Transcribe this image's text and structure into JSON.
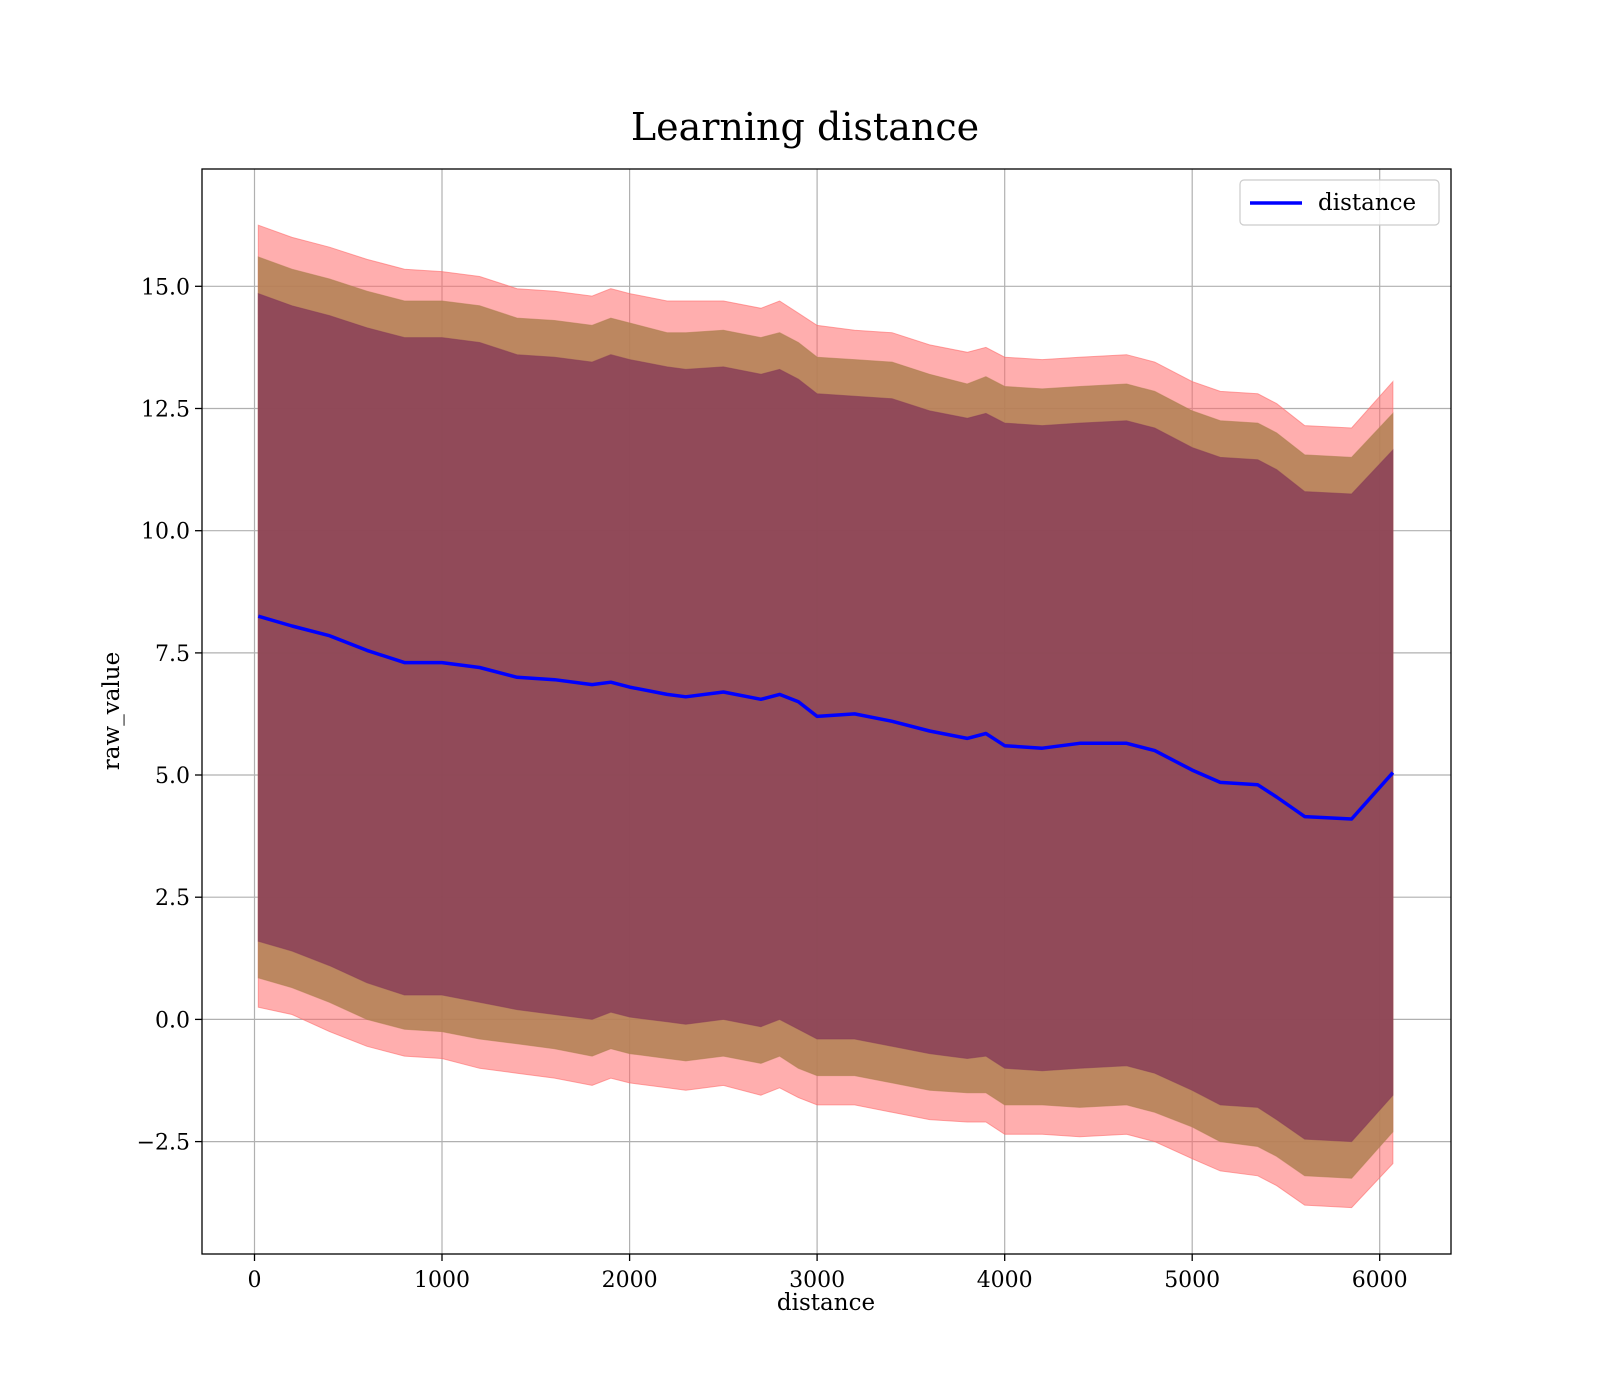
{
  "chart_data": {
    "type": "area",
    "title": "Learning distance",
    "xlabel": "distance",
    "ylabel": "raw_value",
    "xlim": [
      -280,
      6380
    ],
    "ylim": [
      -4.8,
      17.4
    ],
    "xticks": [
      0,
      1000,
      2000,
      3000,
      4000,
      5000,
      6000
    ],
    "xtick_labels": [
      "0",
      "1000",
      "2000",
      "3000",
      "4000",
      "5000",
      "6000"
    ],
    "yticks": [
      -2.5,
      0.0,
      2.5,
      5.0,
      7.5,
      10.0,
      12.5,
      15.0
    ],
    "ytick_labels": [
      "−2.5",
      "0.0",
      "2.5",
      "5.0",
      "7.5",
      "10.0",
      "12.5",
      "15.0"
    ],
    "grid": true,
    "legend": {
      "position": "top-right",
      "entries": [
        "distance"
      ]
    },
    "colors": {
      "line": "#0000ff",
      "band_outer": "#ff6b6b",
      "band_middle": "#b08052",
      "band_inner": "#8a4058"
    },
    "x": [
      20,
      200,
      400,
      600,
      800,
      1000,
      1200,
      1400,
      1600,
      1800,
      1900,
      2000,
      2200,
      2300,
      2500,
      2700,
      2800,
      2900,
      3000,
      3200,
      3400,
      3600,
      3800,
      3900,
      4000,
      4200,
      4400,
      4650,
      4800,
      5000,
      5150,
      5350,
      5450,
      5600,
      5850,
      6070
    ],
    "series": [
      {
        "name": "distance",
        "values": [
          8.25,
          8.05,
          7.85,
          7.55,
          7.3,
          7.3,
          7.2,
          7.0,
          6.95,
          6.85,
          6.9,
          6.8,
          6.65,
          6.6,
          6.7,
          6.55,
          6.65,
          6.5,
          6.2,
          6.25,
          6.1,
          5.9,
          5.75,
          5.85,
          5.6,
          5.55,
          5.65,
          5.65,
          5.5,
          5.1,
          4.85,
          4.8,
          4.55,
          4.15,
          4.1,
          5.05
        ]
      }
    ],
    "bands": [
      {
        "lower": [
          0.25,
          0.1,
          -0.25,
          -0.55,
          -0.75,
          -0.8,
          -1.0,
          -1.1,
          -1.2,
          -1.35,
          -1.2,
          -1.3,
          -1.4,
          -1.45,
          -1.35,
          -1.55,
          -1.4,
          -1.6,
          -1.75,
          -1.75,
          -1.9,
          -2.05,
          -2.1,
          -2.1,
          -2.35,
          -2.35,
          -2.4,
          -2.35,
          -2.5,
          -2.85,
          -3.1,
          -3.2,
          -3.4,
          -3.8,
          -3.85,
          -2.95
        ],
        "upper": [
          16.25,
          16.0,
          15.8,
          15.55,
          15.35,
          15.3,
          15.2,
          14.95,
          14.9,
          14.8,
          14.95,
          14.85,
          14.7,
          14.7,
          14.7,
          14.55,
          14.7,
          14.45,
          14.2,
          14.1,
          14.05,
          13.8,
          13.65,
          13.75,
          13.55,
          13.5,
          13.55,
          13.6,
          13.45,
          13.05,
          12.85,
          12.8,
          12.6,
          12.15,
          12.1,
          13.05
        ]
      },
      {
        "lower": [
          0.85,
          0.65,
          0.35,
          0.0,
          -0.2,
          -0.25,
          -0.4,
          -0.5,
          -0.6,
          -0.75,
          -0.6,
          -0.7,
          -0.8,
          -0.85,
          -0.75,
          -0.9,
          -0.75,
          -1.0,
          -1.15,
          -1.15,
          -1.3,
          -1.45,
          -1.5,
          -1.5,
          -1.75,
          -1.75,
          -1.8,
          -1.75,
          -1.9,
          -2.2,
          -2.5,
          -2.6,
          -2.8,
          -3.2,
          -3.25,
          -2.3
        ],
        "upper": [
          15.6,
          15.35,
          15.15,
          14.9,
          14.7,
          14.7,
          14.6,
          14.35,
          14.3,
          14.2,
          14.35,
          14.25,
          14.05,
          14.05,
          14.1,
          13.95,
          14.05,
          13.85,
          13.55,
          13.5,
          13.45,
          13.2,
          13.0,
          13.15,
          12.95,
          12.9,
          12.95,
          13.0,
          12.85,
          12.45,
          12.25,
          12.2,
          12.0,
          11.55,
          11.5,
          12.4
        ]
      },
      {
        "lower": [
          1.6,
          1.4,
          1.1,
          0.75,
          0.5,
          0.5,
          0.35,
          0.2,
          0.1,
          0.0,
          0.15,
          0.05,
          -0.05,
          -0.1,
          0.0,
          -0.15,
          0.0,
          -0.2,
          -0.4,
          -0.4,
          -0.55,
          -0.7,
          -0.8,
          -0.75,
          -1.0,
          -1.05,
          -1.0,
          -0.95,
          -1.1,
          -1.45,
          -1.75,
          -1.8,
          -2.05,
          -2.45,
          -2.5,
          -1.55
        ],
        "upper": [
          14.85,
          14.6,
          14.4,
          14.15,
          13.95,
          13.95,
          13.85,
          13.6,
          13.55,
          13.45,
          13.6,
          13.5,
          13.35,
          13.3,
          13.35,
          13.2,
          13.3,
          13.1,
          12.8,
          12.75,
          12.7,
          12.45,
          12.3,
          12.4,
          12.2,
          12.15,
          12.2,
          12.25,
          12.1,
          11.7,
          11.5,
          11.45,
          11.25,
          10.8,
          10.75,
          11.65
        ]
      }
    ]
  }
}
